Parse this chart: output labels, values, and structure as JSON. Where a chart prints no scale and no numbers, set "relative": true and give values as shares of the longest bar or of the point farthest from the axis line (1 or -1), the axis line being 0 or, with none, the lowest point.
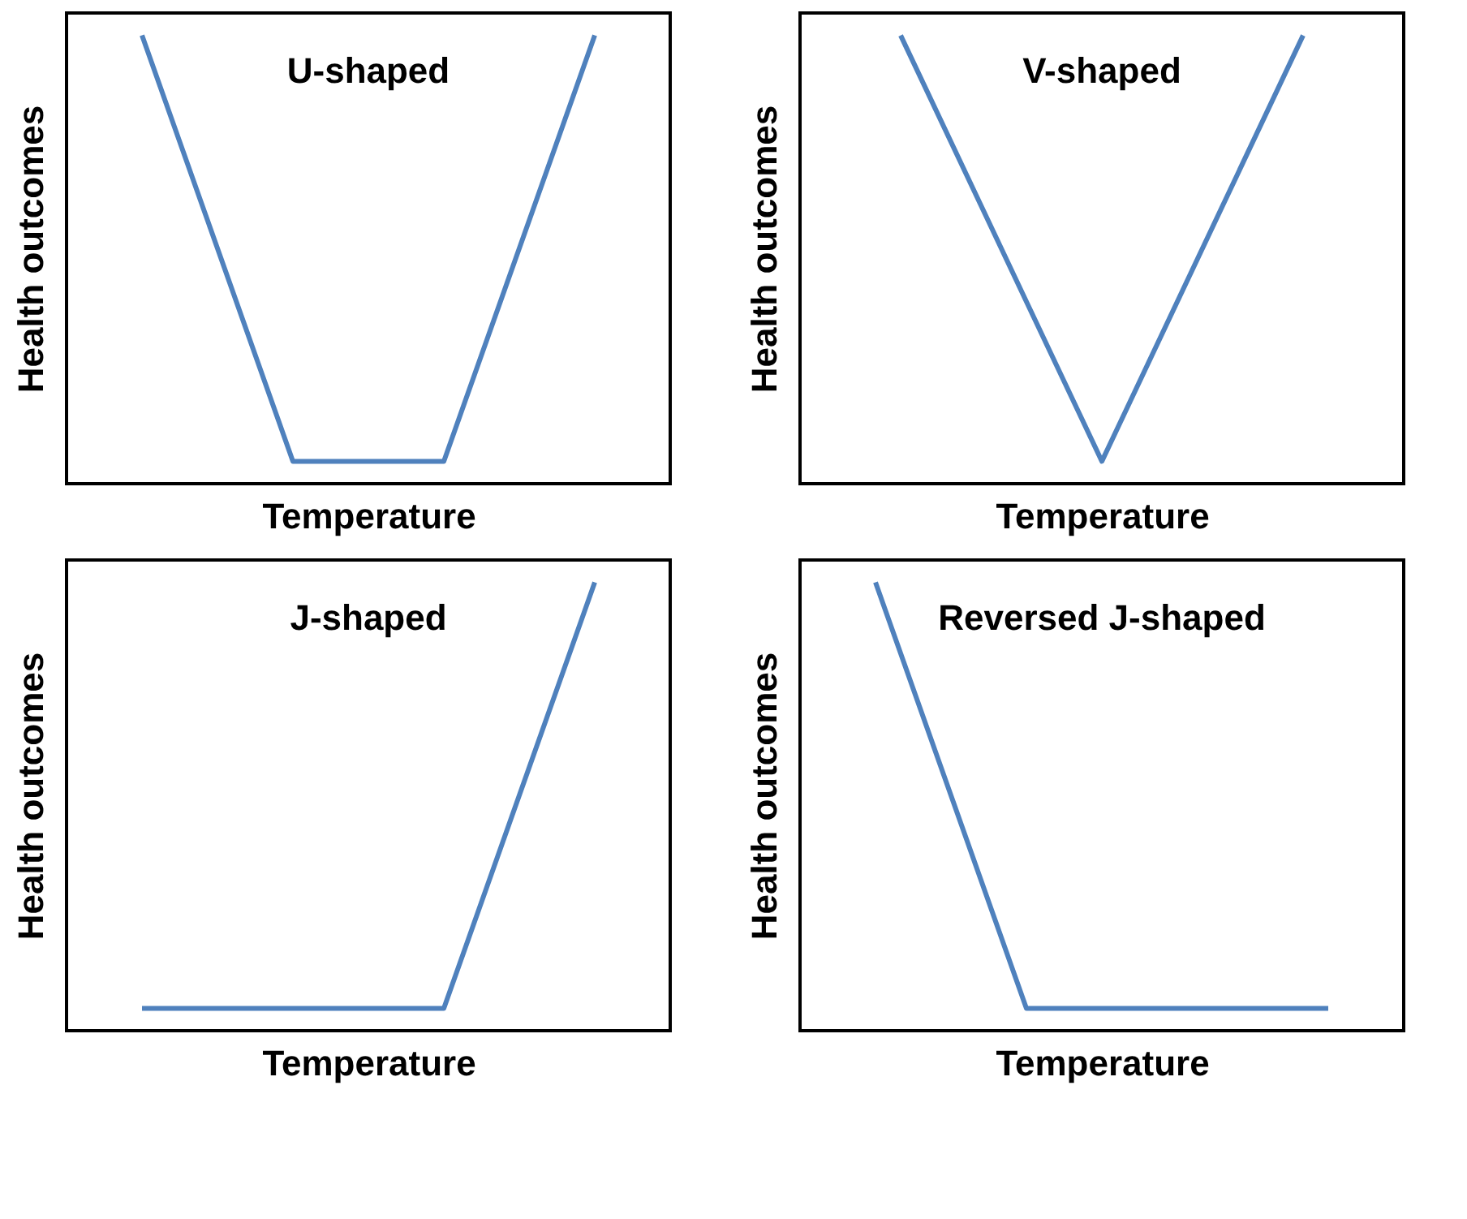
{
  "chart_data": [
    {
      "type": "line",
      "title": "U-shaped",
      "xlabel": "Temperature",
      "ylabel": "Health outcomes",
      "relative": true,
      "categories": [
        null,
        null,
        null,
        null
      ],
      "series": [
        {
          "color": "#4f81bd",
          "values": [
            1,
            0.05,
            0.05,
            1
          ]
        }
      ]
    },
    {
      "type": "line",
      "title": "V-shaped",
      "xlabel": "Temperature",
      "ylabel": "Health outcomes",
      "relative": true,
      "categories": [
        null,
        null,
        null
      ],
      "series": [
        {
          "color": "#4f81bd",
          "values": [
            1,
            0.05,
            1
          ]
        }
      ]
    },
    {
      "type": "line",
      "title": "J-shaped",
      "xlabel": "Temperature",
      "ylabel": "Health outcomes",
      "relative": true,
      "categories": [
        null,
        null,
        null,
        null
      ],
      "series": [
        {
          "color": "#4f81bd",
          "values": [
            0.05,
            0.05,
            0.05,
            1
          ]
        }
      ]
    },
    {
      "type": "line",
      "title": "Reversed J-shaped",
      "xlabel": "Temperature",
      "ylabel": "Health outcomes",
      "relative": true,
      "categories": [
        null,
        null,
        null,
        null
      ],
      "series": [
        {
          "color": "#4f81bd",
          "values": [
            1,
            0.05,
            0.05,
            0.05
          ]
        }
      ]
    }
  ]
}
